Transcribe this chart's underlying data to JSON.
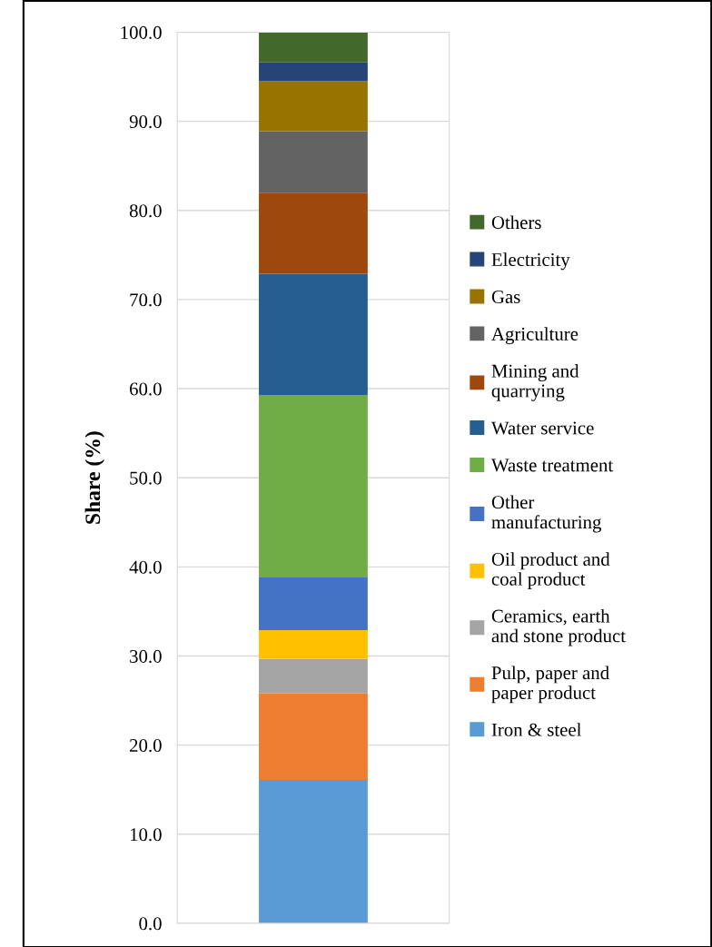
{
  "chart_data": {
    "type": "bar",
    "stacked": true,
    "ylabel": "Share (%)",
    "categories": [
      null
    ],
    "ylim": [
      0,
      100
    ],
    "yticks": [
      {
        "value": 0,
        "label": "0.0"
      },
      {
        "value": 10,
        "label": "10.0"
      },
      {
        "value": 20,
        "label": "20.0"
      },
      {
        "value": 30,
        "label": "30.0"
      },
      {
        "value": 40,
        "label": "40.0"
      },
      {
        "value": 50,
        "label": "50.0"
      },
      {
        "value": 60,
        "label": "60.0"
      },
      {
        "value": 70,
        "label": "70.0"
      },
      {
        "value": 80,
        "label": "80.0"
      },
      {
        "value": 90,
        "label": "90.0"
      },
      {
        "value": 100,
        "label": "100.0"
      }
    ],
    "grid": "y",
    "legend": "right",
    "series": [
      {
        "name": "Iron & steel",
        "color": "#5b9bd5",
        "values": [
          16.1
        ]
      },
      {
        "name": "Pulp, paper and\npaper product",
        "color": "#ed7d31",
        "values": [
          9.7
        ]
      },
      {
        "name": "Ceramics, earth\nand stone product",
        "color": "#a5a5a5",
        "values": [
          3.9
        ]
      },
      {
        "name": "Oil product and\ncoal product",
        "color": "#ffc000",
        "values": [
          3.2
        ]
      },
      {
        "name": "Other\nmanufacturing",
        "color": "#4472c4",
        "values": [
          6.0
        ]
      },
      {
        "name": "Waste treatment",
        "color": "#70ad47",
        "values": [
          20.4
        ]
      },
      {
        "name": "Water service",
        "color": "#255e91",
        "values": [
          13.6
        ]
      },
      {
        "name": "Mining and\nquarrying",
        "color": "#9e480e",
        "values": [
          9.1
        ]
      },
      {
        "name": "Agriculture",
        "color": "#636363",
        "values": [
          6.9
        ]
      },
      {
        "name": "Gas",
        "color": "#997300",
        "values": [
          5.6
        ]
      },
      {
        "name": "Electricity",
        "color": "#264478",
        "values": [
          2.1
        ]
      },
      {
        "name": "Others",
        "color": "#43682b",
        "values": [
          3.4
        ]
      }
    ]
  }
}
